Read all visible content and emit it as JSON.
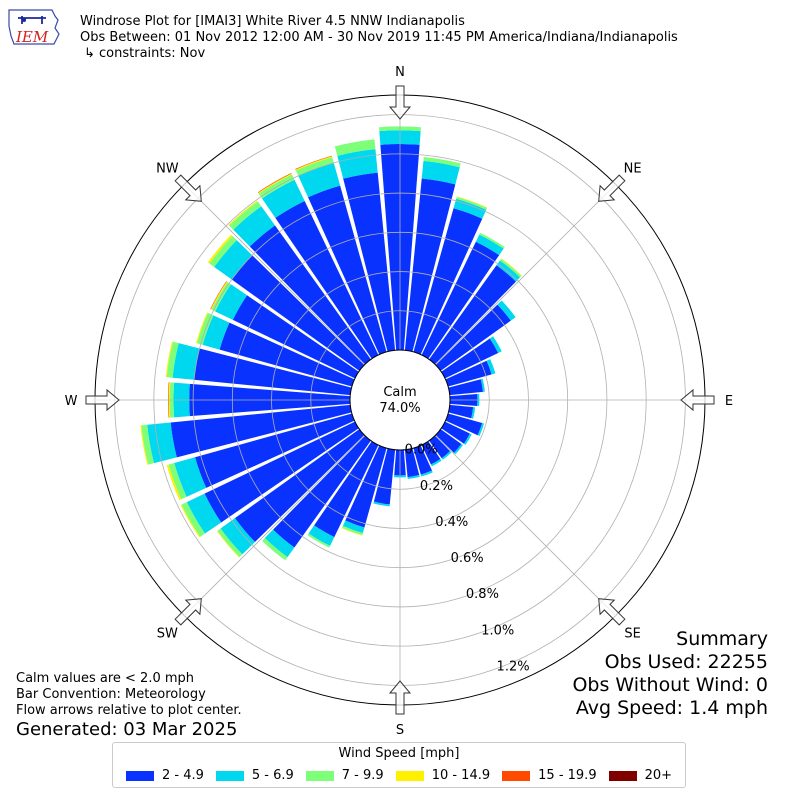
{
  "header": {
    "title_line1": "Windrose Plot for [IMAI3] White River 4.5 NNW Indianapolis",
    "title_line2": "Obs Between: 01 Nov 2012 12:00 AM - 30 Nov 2019 11:45 PM America/Indiana/Indianapolis",
    "title_line3": "↳ constraints: Nov",
    "logo_text": "IEM"
  },
  "summary": {
    "heading": "Summary",
    "obs_used": "Obs Used: 22255",
    "obs_without_wind": "Obs Without Wind: 0",
    "avg_speed": "Avg Speed: 1.4 mph"
  },
  "notes": {
    "calm_note": "Calm values are < 2.0 mph",
    "bar_convention": "Bar Convention: Meteorology",
    "flow_arrows": "Flow arrows relative to plot center.",
    "generated": "Generated: 03 Mar 2025"
  },
  "calm": {
    "label": "Calm",
    "value": "74.0%"
  },
  "legend": {
    "title": "Wind Speed [mph]",
    "items": [
      {
        "label": "2 - 4.9",
        "color": "#0a32ff"
      },
      {
        "label": "5 - 6.9",
        "color": "#00d8f0"
      },
      {
        "label": "7 - 9.9",
        "color": "#7dff7a"
      },
      {
        "label": "10 - 14.9",
        "color": "#fff000"
      },
      {
        "label": "15 - 19.9",
        "color": "#ff4a00"
      },
      {
        "label": "20+",
        "color": "#800000"
      }
    ]
  },
  "chart_data": {
    "type": "windrose",
    "radial_unit": "%",
    "radial_ticks": [
      "0.0%",
      "0.2%",
      "0.4%",
      "0.6%",
      "0.8%",
      "1.0%",
      "1.2%"
    ],
    "rmax": 1.3,
    "directions": [
      "N",
      "NE",
      "E",
      "SE",
      "S",
      "SW",
      "W",
      "NW"
    ],
    "bin_width_deg": 10,
    "bins": [
      {
        "dir": 0,
        "values": [
          1.05,
          0.07,
          0.02,
          0,
          0,
          0
        ]
      },
      {
        "dir": 10,
        "values": [
          0.88,
          0.09,
          0.02,
          0,
          0,
          0
        ]
      },
      {
        "dir": 20,
        "values": [
          0.76,
          0.05,
          0.01,
          0.003,
          0,
          0
        ]
      },
      {
        "dir": 30,
        "values": [
          0.64,
          0.04,
          0.01,
          0,
          0,
          0
        ]
      },
      {
        "dir": 40,
        "values": [
          0.59,
          0.03,
          0.01,
          0.003,
          0,
          0
        ]
      },
      {
        "dir": 50,
        "values": [
          0.44,
          0.03,
          0,
          0,
          0,
          0
        ]
      },
      {
        "dir": 60,
        "values": [
          0.3,
          0.02,
          0,
          0,
          0,
          0
        ]
      },
      {
        "dir": 70,
        "values": [
          0.23,
          0.02,
          0,
          0,
          0,
          0
        ]
      },
      {
        "dir": 80,
        "values": [
          0.17,
          0.01,
          0,
          0,
          0,
          0
        ]
      },
      {
        "dir": 90,
        "values": [
          0.14,
          0.01,
          0,
          0,
          0,
          0
        ]
      },
      {
        "dir": 100,
        "values": [
          0.12,
          0.01,
          0,
          0,
          0,
          0
        ]
      },
      {
        "dir": 110,
        "values": [
          0.18,
          0.01,
          0,
          0,
          0,
          0
        ]
      },
      {
        "dir": 120,
        "values": [
          0.14,
          0.01,
          0,
          0,
          0,
          0
        ]
      },
      {
        "dir": 130,
        "values": [
          0.13,
          0.01,
          0,
          0,
          0,
          0
        ]
      },
      {
        "dir": 140,
        "values": [
          0.11,
          0.01,
          0,
          0,
          0,
          0
        ]
      },
      {
        "dir": 150,
        "values": [
          0.11,
          0.01,
          0,
          0,
          0,
          0
        ]
      },
      {
        "dir": 160,
        "values": [
          0.14,
          0.01,
          0,
          0,
          0,
          0
        ]
      },
      {
        "dir": 170,
        "values": [
          0.14,
          0.01,
          0,
          0,
          0,
          0
        ]
      },
      {
        "dir": 180,
        "values": [
          0.13,
          0.01,
          0,
          0,
          0,
          0
        ]
      },
      {
        "dir": 190,
        "values": [
          0.28,
          0.01,
          0,
          0,
          0,
          0
        ]
      },
      {
        "dir": 200,
        "values": [
          0.42,
          0.03,
          0.01,
          0.003,
          0,
          0
        ]
      },
      {
        "dir": 210,
        "values": [
          0.52,
          0.05,
          0.01,
          0,
          0,
          0
        ]
      },
      {
        "dir": 220,
        "values": [
          0.67,
          0.06,
          0.02,
          0,
          0,
          0
        ]
      },
      {
        "dir": 230,
        "values": [
          0.78,
          0.09,
          0.02,
          0.003,
          0,
          0
        ]
      },
      {
        "dir": 240,
        "values": [
          0.85,
          0.1,
          0.03,
          0.005,
          0,
          0
        ]
      },
      {
        "dir": 250,
        "values": [
          0.83,
          0.11,
          0.03,
          0.01,
          0,
          0
        ]
      },
      {
        "dir": 260,
        "values": [
          0.92,
          0.12,
          0.03,
          0.005,
          0,
          0
        ]
      },
      {
        "dir": 270,
        "values": [
          0.82,
          0.08,
          0.02,
          0.005,
          0.003,
          0
        ]
      },
      {
        "dir": 280,
        "values": [
          0.8,
          0.11,
          0.03,
          0.005,
          0,
          0
        ]
      },
      {
        "dir": 290,
        "values": [
          0.7,
          0.09,
          0.03,
          0.005,
          0,
          0
        ]
      },
      {
        "dir": 300,
        "values": [
          0.69,
          0.1,
          0.02,
          0.005,
          0.003,
          0
        ]
      },
      {
        "dir": 310,
        "values": [
          0.8,
          0.11,
          0.03,
          0.01,
          0,
          0
        ]
      },
      {
        "dir": 320,
        "values": [
          0.84,
          0.12,
          0.03,
          0.005,
          0,
          0
        ]
      },
      {
        "dir": 330,
        "values": [
          0.87,
          0.12,
          0.03,
          0.005,
          0.003,
          0
        ]
      },
      {
        "dir": 340,
        "values": [
          0.88,
          0.12,
          0.03,
          0.005,
          0.003,
          0
        ]
      },
      {
        "dir": 350,
        "values": [
          0.91,
          0.12,
          0.05,
          0,
          0,
          0
        ]
      }
    ]
  }
}
